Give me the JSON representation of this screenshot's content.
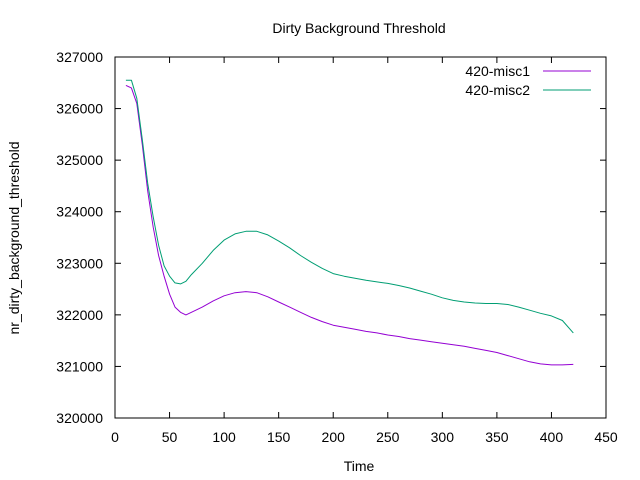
{
  "chart_data": {
    "type": "line",
    "title": "Dirty Background Threshold",
    "xlabel": "Time",
    "ylabel": "nr_dirty_background_threshold",
    "xlim": [
      0,
      450
    ],
    "ylim": [
      320000,
      327000
    ],
    "xticks": [
      0,
      50,
      100,
      150,
      200,
      250,
      300,
      350,
      400,
      450
    ],
    "yticks": [
      320000,
      321000,
      322000,
      323000,
      324000,
      325000,
      326000,
      327000
    ],
    "grid": false,
    "legend_position": "top-right",
    "series": [
      {
        "name": "420-misc1",
        "color": "#9400d3",
        "points": [
          [
            10,
            326450
          ],
          [
            15,
            326400
          ],
          [
            20,
            326100
          ],
          [
            25,
            325300
          ],
          [
            30,
            324400
          ],
          [
            35,
            323700
          ],
          [
            40,
            323150
          ],
          [
            45,
            322750
          ],
          [
            50,
            322400
          ],
          [
            55,
            322150
          ],
          [
            60,
            322050
          ],
          [
            65,
            322000
          ],
          [
            70,
            322050
          ],
          [
            80,
            322150
          ],
          [
            90,
            322270
          ],
          [
            100,
            322370
          ],
          [
            110,
            322430
          ],
          [
            120,
            322450
          ],
          [
            130,
            322430
          ],
          [
            140,
            322350
          ],
          [
            150,
            322250
          ],
          [
            160,
            322150
          ],
          [
            170,
            322050
          ],
          [
            180,
            321950
          ],
          [
            190,
            321870
          ],
          [
            200,
            321800
          ],
          [
            210,
            321760
          ],
          [
            220,
            321720
          ],
          [
            230,
            321680
          ],
          [
            240,
            321650
          ],
          [
            250,
            321610
          ],
          [
            260,
            321580
          ],
          [
            270,
            321540
          ],
          [
            280,
            321510
          ],
          [
            290,
            321480
          ],
          [
            300,
            321450
          ],
          [
            310,
            321420
          ],
          [
            320,
            321390
          ],
          [
            330,
            321350
          ],
          [
            340,
            321310
          ],
          [
            350,
            321270
          ],
          [
            360,
            321210
          ],
          [
            370,
            321150
          ],
          [
            380,
            321090
          ],
          [
            390,
            321050
          ],
          [
            400,
            321030
          ],
          [
            410,
            321030
          ],
          [
            420,
            321040
          ]
        ]
      },
      {
        "name": "420-misc2",
        "color": "#009e73",
        "points": [
          [
            10,
            326550
          ],
          [
            15,
            326550
          ],
          [
            20,
            326200
          ],
          [
            25,
            325400
          ],
          [
            30,
            324550
          ],
          [
            35,
            323900
          ],
          [
            40,
            323350
          ],
          [
            45,
            322950
          ],
          [
            50,
            322750
          ],
          [
            55,
            322620
          ],
          [
            60,
            322600
          ],
          [
            65,
            322650
          ],
          [
            70,
            322780
          ],
          [
            80,
            323000
          ],
          [
            90,
            323250
          ],
          [
            100,
            323450
          ],
          [
            110,
            323570
          ],
          [
            120,
            323620
          ],
          [
            130,
            323620
          ],
          [
            140,
            323550
          ],
          [
            150,
            323430
          ],
          [
            160,
            323300
          ],
          [
            170,
            323150
          ],
          [
            180,
            323020
          ],
          [
            190,
            322900
          ],
          [
            200,
            322800
          ],
          [
            210,
            322750
          ],
          [
            220,
            322710
          ],
          [
            230,
            322670
          ],
          [
            240,
            322640
          ],
          [
            250,
            322610
          ],
          [
            260,
            322570
          ],
          [
            270,
            322520
          ],
          [
            280,
            322460
          ],
          [
            290,
            322400
          ],
          [
            300,
            322330
          ],
          [
            310,
            322280
          ],
          [
            320,
            322250
          ],
          [
            330,
            322230
          ],
          [
            340,
            322220
          ],
          [
            350,
            322220
          ],
          [
            360,
            322200
          ],
          [
            370,
            322150
          ],
          [
            380,
            322090
          ],
          [
            390,
            322030
          ],
          [
            400,
            321980
          ],
          [
            410,
            321890
          ],
          [
            420,
            321650
          ]
        ]
      }
    ]
  }
}
